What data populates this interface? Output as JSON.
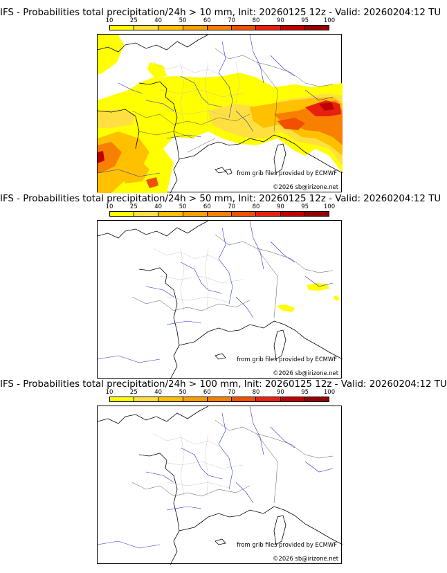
{
  "colorbar": {
    "labels": [
      "10",
      "25",
      "40",
      "50",
      "60",
      "70",
      "80",
      "90",
      "95",
      "100"
    ],
    "colors": [
      "#ffff00",
      "#ffe040",
      "#ffc000",
      "#f8a000",
      "#f88000",
      "#f05000",
      "#e82010",
      "#c00000",
      "#980000",
      "#700000"
    ]
  },
  "panels": [
    {
      "title": "IFS - Probabilities total precipitation/24h > 10 mm, Init: 20260125 12z - Valid: 20260204:12 TU",
      "credit": "from grib files provided by ECMWF",
      "copyright": "©2026 sb@irizone.net"
    },
    {
      "title": "IFS - Probabilities total precipitation/24h > 50 mm, Init: 20260125 12z - Valid: 20260204:12 TU",
      "credit": "from grib files provided by ECMWF",
      "copyright": "©2026 sb@irizone.net"
    },
    {
      "title": "IFS - Probabilities total precipitation/24h > 100 mm, Init: 20260125 12z - Valid: 20260204:12 TU",
      "credit": "from grib files provided by ECMWF",
      "copyright": "©2026 sb@irizone.net"
    }
  ]
}
